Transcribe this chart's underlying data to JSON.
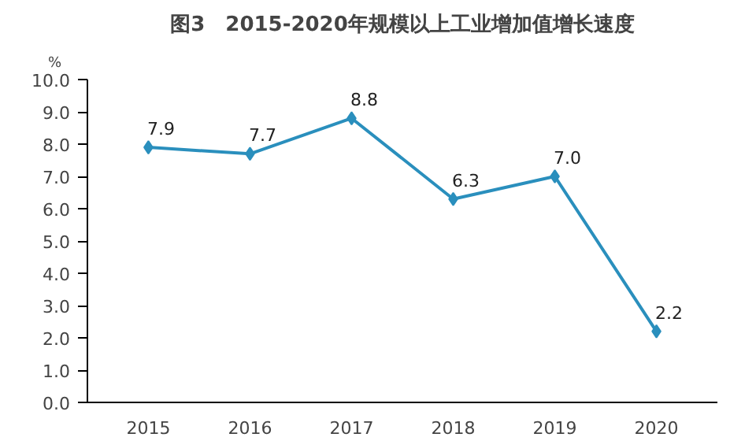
{
  "chart_data": {
    "type": "line",
    "title": "图3　2015-2020年规模以上工业增加值增长速度",
    "ylabel": "%",
    "categories": [
      "2015",
      "2016",
      "2017",
      "2018",
      "2019",
      "2020"
    ],
    "series": [
      {
        "color": "#2a8fbd",
        "values": [
          7.9,
          7.7,
          8.8,
          6.3,
          7.0,
          2.2
        ],
        "value_labels": [
          "7.9",
          "7.7",
          "8.8",
          "6.3",
          "7.0",
          "2.2"
        ]
      }
    ],
    "ylim": [
      0,
      10
    ],
    "yticks": [
      {
        "value": 0,
        "label": "0.0"
      },
      {
        "value": 1,
        "label": "1.0"
      },
      {
        "value": 2,
        "label": "2.0"
      },
      {
        "value": 3,
        "label": "3.0"
      },
      {
        "value": 4,
        "label": "4.0"
      },
      {
        "value": 5,
        "label": "5.0"
      },
      {
        "value": 6,
        "label": "6.0"
      },
      {
        "value": 7,
        "label": "7.0"
      },
      {
        "value": 8,
        "label": "8.0"
      },
      {
        "value": 9,
        "label": "9.0"
      },
      {
        "value": 10,
        "label": "10.0"
      }
    ],
    "grid": false,
    "marker": "diamond",
    "line_style": "solid"
  }
}
